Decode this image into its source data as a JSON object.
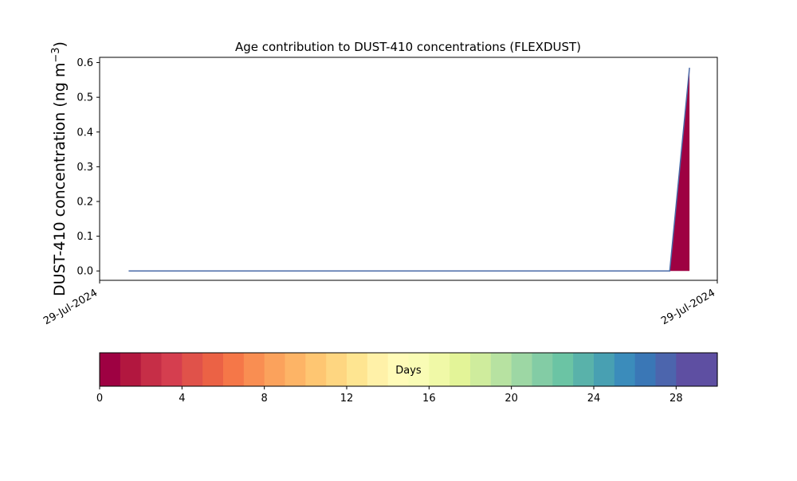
{
  "chart_data": {
    "type": "area",
    "title": "Age contribution to DUST-410 concentrations (FLEXDUST)",
    "ylabel_main": "DUST-410 concentration (ng m",
    "ylabel_sup": "−3",
    "ylabel_tail": ")",
    "xlabel": "",
    "x_ticks": [
      "29-Jul-2024",
      "29-Jul-2024"
    ],
    "x_domain": [
      0,
      1
    ],
    "y_ticks": [
      0.0,
      0.1,
      0.2,
      0.3,
      0.4,
      0.5,
      0.6
    ],
    "ylim": [
      -0.027,
      0.615
    ],
    "grid": false,
    "series": [
      {
        "label": "0",
        "color": "#9e0142",
        "points": [
          [
            0.047,
            0.0
          ],
          [
            0.923,
            0.0
          ],
          [
            0.955,
            0.585
          ]
        ]
      }
    ],
    "line_color": "#4a6aa8",
    "colorbar": {
      "label": "Days",
      "min": 0,
      "max": 30,
      "ticks": [
        0,
        4,
        8,
        12,
        16,
        20,
        24,
        28
      ],
      "colors": [
        "#9e0142",
        "#b2173f",
        "#c62e47",
        "#d53e4f",
        "#e0524a",
        "#eb6245",
        "#f57748",
        "#f98e52",
        "#fba25c",
        "#fdb466",
        "#fec672",
        "#fed681",
        "#fee591",
        "#fff1a8",
        "#fffbb8",
        "#f9fcb5",
        "#f0f9a7",
        "#e3f498",
        "#cfec9d",
        "#b7e2a1",
        "#9dd7a4",
        "#83cca5",
        "#6bc4a4",
        "#59b2aa",
        "#48a0b2",
        "#3b8cbb",
        "#3a77b6",
        "#4c65ad",
        "#5e4fa2",
        "#5e4fa2"
      ]
    }
  }
}
